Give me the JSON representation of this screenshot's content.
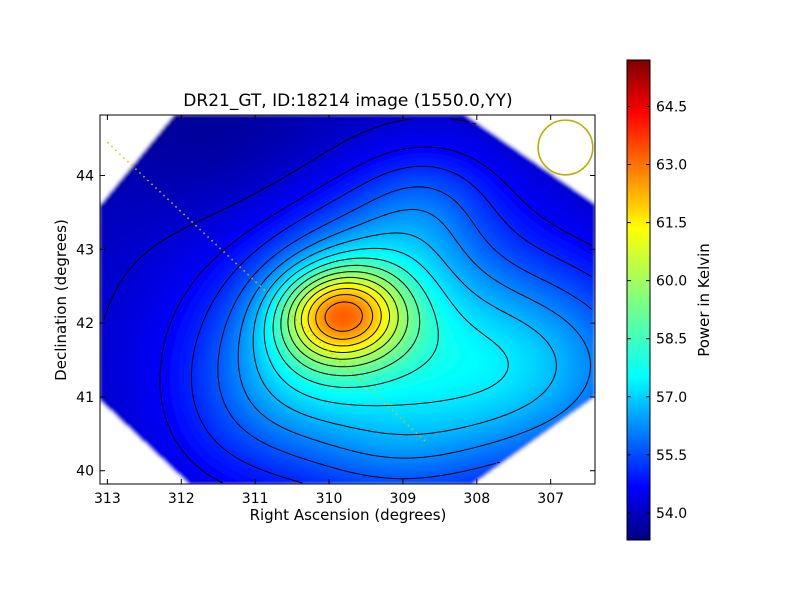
{
  "chart_data": {
    "type": "heatmap",
    "title": "DR21_GT, ID:18214 image (1550.0,YY)",
    "xlabel": "Right Ascension (degrees)",
    "ylabel": "Declination (degrees)",
    "xlim": [
      313.1,
      306.4
    ],
    "ylim": [
      39.82,
      44.82
    ],
    "x_ticks": [
      313,
      312,
      311,
      310,
      309,
      308,
      307
    ],
    "y_ticks": [
      40,
      41,
      42,
      43,
      44
    ],
    "colorbar": {
      "label": "Power in Kelvin",
      "range": [
        53.3,
        65.7
      ],
      "ticks": [
        "54.0",
        "55.5",
        "57.0",
        "58.5",
        "60.0",
        "61.5",
        "63.0",
        "64.5"
      ],
      "colormap": "jet"
    },
    "coverage_diamond": [
      [
        312.1,
        44.82
      ],
      [
        308.15,
        44.82
      ],
      [
        306.4,
        43.62
      ],
      [
        306.4,
        41.0
      ],
      [
        308.05,
        39.82
      ],
      [
        311.9,
        39.82
      ],
      [
        313.1,
        40.95
      ],
      [
        313.1,
        43.6
      ]
    ],
    "peak": {
      "ra": 309.85,
      "dec": 42.12,
      "value": 65.2
    },
    "background_level": 53.9,
    "beam_marker": {
      "ra": 306.8,
      "dec": 44.38,
      "radius_deg": 0.37,
      "color": "#b5b000"
    },
    "dotted_line": {
      "from": [
        313.0,
        44.45
      ],
      "to": [
        308.7,
        40.4
      ],
      "color": "#c8c800"
    },
    "contour_levels": [
      54.3,
      54.8,
      55.3,
      55.9,
      56.5,
      57.1,
      57.7,
      58.3,
      58.9,
      59.5,
      60.1,
      60.7,
      61.3,
      61.9,
      62.5,
      63.1,
      63.7,
      64.3,
      64.9
    ]
  }
}
